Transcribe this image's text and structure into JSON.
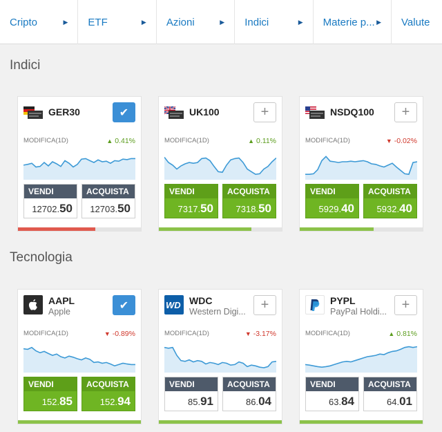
{
  "tabs": [
    {
      "label": "Cripto"
    },
    {
      "label": "ETF"
    },
    {
      "label": "Azioni"
    },
    {
      "label": "Indici"
    },
    {
      "label": "Materie p..."
    },
    {
      "label": "Valute"
    }
  ],
  "sections": [
    {
      "title": "Indici",
      "cards": [
        {
          "symbol": "GER30",
          "name": "",
          "watched": true,
          "change_label": "MODIFICA(1D)",
          "change": "0.41%",
          "direction": "up",
          "sell_label": "VENDI",
          "buy_label": "ACQUISTA",
          "sell_int": "12702.",
          "sell_dec": "50",
          "buy_int": "12703.",
          "buy_dec": "50",
          "sell_highlight": false,
          "buy_highlight": false,
          "sentiment_sell_fraction": 0.63,
          "sentiment_color": "#e05a4e",
          "spark": [
            0.45,
            0.48,
            0.52,
            0.38,
            0.4,
            0.55,
            0.42,
            0.58,
            0.5,
            0.4,
            0.62,
            0.52,
            0.38,
            0.48,
            0.68,
            0.7,
            0.62,
            0.55,
            0.65,
            0.58,
            0.6,
            0.52,
            0.62,
            0.6,
            0.68,
            0.66,
            0.7,
            0.7
          ]
        },
        {
          "symbol": "UK100",
          "name": "",
          "watched": false,
          "change_label": "MODIFICA(1D)",
          "change": "0.11%",
          "direction": "up",
          "sell_label": "VENDI",
          "buy_label": "ACQUISTA",
          "sell_int": "7317.",
          "sell_dec": "50",
          "buy_int": "7318.",
          "buy_dec": "50",
          "sell_highlight": true,
          "buy_highlight": true,
          "sentiment_sell_fraction": 0.75,
          "sentiment_color": "#8cc24a",
          "spark": [
            0.75,
            0.55,
            0.45,
            0.3,
            0.42,
            0.5,
            0.55,
            0.52,
            0.55,
            0.7,
            0.72,
            0.62,
            0.4,
            0.2,
            0.18,
            0.45,
            0.65,
            0.7,
            0.72,
            0.55,
            0.3,
            0.2,
            0.1,
            0.12,
            0.3,
            0.4,
            0.58,
            0.72
          ]
        },
        {
          "symbol": "NSDQ100",
          "name": "",
          "watched": false,
          "change_label": "MODIFICA(1D)",
          "change": "-0.02%",
          "direction": "down",
          "sell_label": "VENDI",
          "buy_label": "ACQUISTA",
          "sell_int": "5929.",
          "sell_dec": "40",
          "buy_int": "5932.",
          "buy_dec": "40",
          "sell_highlight": true,
          "buy_highlight": true,
          "sentiment_sell_fraction": 0.6,
          "sentiment_color": "#8cc24a",
          "spark": [
            0.1,
            0.1,
            0.12,
            0.28,
            0.62,
            0.78,
            0.6,
            0.58,
            0.55,
            0.58,
            0.58,
            0.6,
            0.58,
            0.6,
            0.62,
            0.58,
            0.5,
            0.48,
            0.42,
            0.38,
            0.45,
            0.52,
            0.38,
            0.25,
            0.12,
            0.1,
            0.55,
            0.58
          ]
        }
      ]
    },
    {
      "title": "Tecnologia",
      "cards": [
        {
          "symbol": "AAPL",
          "name": "Apple",
          "watched": true,
          "change_label": "MODIFICA(1D)",
          "change": "-0.89%",
          "direction": "down",
          "sell_label": "VENDI",
          "buy_label": "ACQUISTA",
          "sell_int": "152.",
          "sell_dec": "85",
          "buy_int": "152.",
          "buy_dec": "94",
          "sell_highlight": true,
          "buy_highlight": true,
          "sentiment_sell_fraction": 1.0,
          "sentiment_color": "#8cc24a",
          "spark": [
            0.8,
            0.78,
            0.85,
            0.72,
            0.65,
            0.7,
            0.62,
            0.55,
            0.6,
            0.5,
            0.45,
            0.52,
            0.48,
            0.42,
            0.38,
            0.45,
            0.4,
            0.28,
            0.3,
            0.25,
            0.28,
            0.22,
            0.15,
            0.2,
            0.25,
            0.22,
            0.2,
            0.2
          ]
        },
        {
          "symbol": "WDC",
          "name": "Western Digi...",
          "watched": false,
          "change_label": "MODIFICA(1D)",
          "change": "-3.17%",
          "direction": "down",
          "sell_label": "VENDI",
          "buy_label": "ACQUISTA",
          "sell_int": "85.",
          "sell_dec": "91",
          "buy_int": "86.",
          "buy_dec": "04",
          "sell_highlight": false,
          "buy_highlight": false,
          "sentiment_sell_fraction": 1.0,
          "sentiment_color": "#8cc24a",
          "spark": [
            0.85,
            0.82,
            0.85,
            0.55,
            0.35,
            0.32,
            0.38,
            0.3,
            0.35,
            0.32,
            0.22,
            0.28,
            0.25,
            0.2,
            0.28,
            0.25,
            0.18,
            0.2,
            0.3,
            0.25,
            0.12,
            0.18,
            0.15,
            0.1,
            0.08,
            0.12,
            0.3,
            0.32
          ]
        },
        {
          "symbol": "PYPL",
          "name": "PayPal Holdi...",
          "watched": false,
          "change_label": "MODIFICA(1D)",
          "change": "0.81%",
          "direction": "up",
          "sell_label": "VENDI",
          "buy_label": "ACQUISTA",
          "sell_int": "63.",
          "sell_dec": "84",
          "buy_int": "64.",
          "buy_dec": "01",
          "sell_highlight": false,
          "buy_highlight": false,
          "sentiment_sell_fraction": 1.0,
          "sentiment_color": "#8cc24a",
          "spark": [
            0.2,
            0.18,
            0.15,
            0.12,
            0.1,
            0.12,
            0.15,
            0.2,
            0.25,
            0.3,
            0.32,
            0.3,
            0.35,
            0.4,
            0.45,
            0.5,
            0.52,
            0.55,
            0.6,
            0.58,
            0.65,
            0.7,
            0.72,
            0.78,
            0.85,
            0.88,
            0.85,
            0.88
          ]
        }
      ]
    }
  ],
  "colors": {
    "accent": "#1a7ac2",
    "green": "#6fb523",
    "red": "#d0382c",
    "watch_active": "#3b8fd6",
    "spark_line": "#3d9ad6",
    "spark_fill": "#dbecf8"
  },
  "icons": {
    "tab_arrow": "triangle-right-icon",
    "watch_add": "plus-icon",
    "watch_active": "check-icon",
    "up": "arrow-up-icon",
    "down": "arrow-down-icon"
  }
}
